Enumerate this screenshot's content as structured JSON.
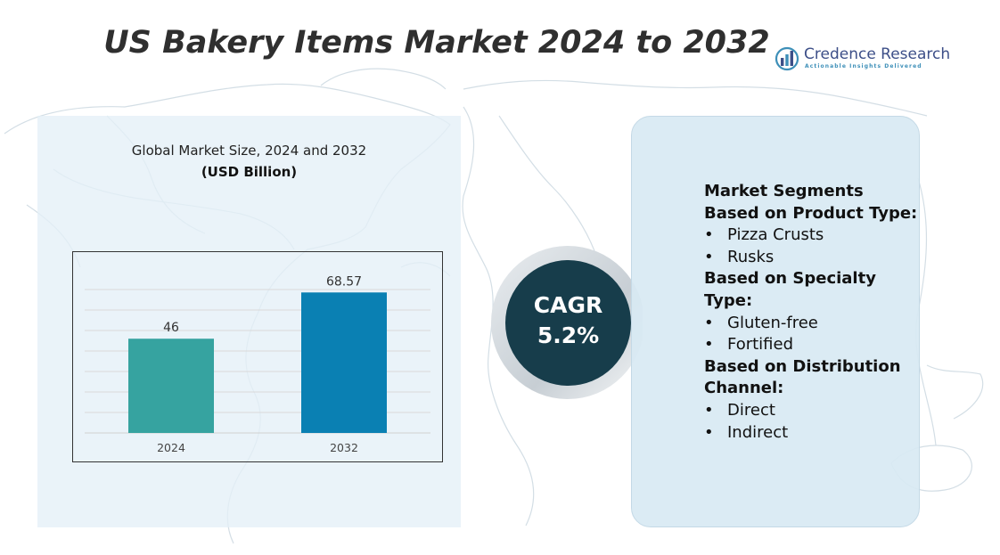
{
  "header": {
    "title": "US Bakery Items Market 2024 to 2032"
  },
  "logo": {
    "name": "Credence Research",
    "tagline": "Actionable Insights Delivered",
    "icon": "bar-chart-logo-icon"
  },
  "chart_panel": {
    "title": "Global Market Size, 2024 and 2032",
    "unit": "(USD Billion)"
  },
  "chart_data": {
    "type": "bar",
    "categories": [
      "2024",
      "2032"
    ],
    "values": [
      46,
      68.57
    ],
    "value_labels": [
      "46",
      "68.57"
    ],
    "colors": [
      "#36a3a0",
      "#0a80b3"
    ],
    "title": "Global Market Size, 2024 and 2032",
    "ylabel": "(USD Billion)",
    "ylim": [
      0,
      80
    ],
    "grid": true
  },
  "cagr": {
    "label": "CAGR",
    "value": "5.2%"
  },
  "segments": {
    "title": "Market Segments",
    "groups": [
      {
        "heading": "Based on Product Type:",
        "items": [
          "Pizza Crusts",
          "Rusks"
        ]
      },
      {
        "heading": "Based on Specialty Type:",
        "items": [
          "Gluten-free",
          "Fortified"
        ]
      },
      {
        "heading": "Based on Distribution Channel:",
        "items": [
          "Direct",
          "Indirect"
        ]
      }
    ]
  },
  "colors": {
    "title": "#2f2f2f",
    "cagr_circle": "#173d4b",
    "panel": "#d8e9f3",
    "bar_2024": "#36a3a0",
    "bar_2032": "#0a80b3"
  }
}
